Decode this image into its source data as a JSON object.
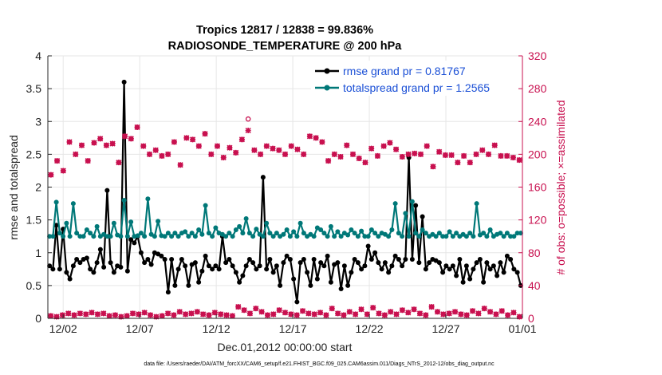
{
  "chart_data": {
    "type": "line",
    "title": "Tropics 12817 / 12838 = 99.836%",
    "subtitle": "RADIOSONDE_TEMPERATURE @ 200 hPa",
    "xlabel": "Dec.01,2012 00:00:00 start",
    "ylabel": "rmse and totalspread",
    "ylabel_right": "# of obs: o=possible; ×=assimilated",
    "xlim": [
      0,
      31
    ],
    "ylim": [
      0,
      4
    ],
    "ylim_right": [
      0,
      320
    ],
    "x_tick_values": [
      1,
      6,
      11,
      16,
      21,
      26,
      31
    ],
    "x_tick_labels": [
      "12/02",
      "12/07",
      "12/12",
      "12/17",
      "12/22",
      "12/27",
      "01/01"
    ],
    "y_ticks": [
      0,
      0.5,
      1,
      1.5,
      2,
      2.5,
      3,
      3.5,
      4
    ],
    "y_tick_labels": [
      "0",
      "0.5",
      "1",
      "1.5",
      "2",
      "2.5",
      "3",
      "3.5",
      "4"
    ],
    "y_ticks_right": [
      0,
      40,
      80,
      120,
      160,
      200,
      240,
      280,
      320
    ],
    "y_tick_labels_right": [
      "0",
      "40",
      "80",
      "120",
      "160",
      "200",
      "240",
      "280",
      "320"
    ],
    "legend": [
      {
        "label": "rmse grand pr = 0.81767",
        "color": "#000000"
      },
      {
        "label": "totalspread grand pr = 1.2565",
        "color": "#007878"
      }
    ],
    "series": [
      {
        "name": "rmse",
        "axis": "left",
        "color": "#000000",
        "values": [
          0.8,
          0.75,
          1.42,
          0.75,
          1.36,
          0.7,
          0.6,
          0.8,
          0.9,
          0.85,
          0.9,
          0.92,
          0.75,
          0.7,
          0.85,
          1.05,
          0.78,
          1.95,
          0.85,
          0.7,
          0.8,
          0.78,
          3.6,
          0.72,
          1.2,
          1.15,
          1.25,
          1.0,
          0.85,
          0.9,
          0.82,
          1.0,
          0.98,
          0.95,
          0.9,
          0.4,
          0.9,
          0.5,
          0.75,
          0.9,
          0.8,
          0.5,
          0.82,
          0.85,
          0.55,
          0.72,
          0.95,
          0.8,
          0.75,
          0.8,
          0.75,
          1.25,
          0.85,
          0.9,
          0.8,
          0.7,
          0.55,
          0.65,
          0.8,
          0.9,
          0.85,
          0.75,
          0.8,
          2.15,
          0.75,
          0.9,
          0.7,
          0.8,
          0.5,
          0.85,
          0.95,
          0.9,
          0.6,
          0.25,
          0.85,
          0.9,
          0.7,
          0.5,
          0.9,
          0.6,
          0.85,
          0.8,
          0.95,
          0.55,
          0.82,
          0.85,
          0.45,
          0.8,
          0.5,
          0.7,
          0.9,
          0.85,
          0.75,
          0.8,
          1.1,
          0.9,
          1.0,
          0.85,
          0.75,
          0.85,
          0.7,
          0.8,
          0.95,
          0.9,
          0.8,
          0.9,
          2.45,
          0.9,
          1.72,
          0.85,
          1.55,
          0.75,
          0.85,
          0.9,
          0.88,
          0.85,
          0.7,
          0.8,
          0.75,
          0.8,
          0.65,
          0.9,
          0.55,
          0.8,
          0.6,
          0.75,
          0.85,
          0.9,
          0.55,
          0.85,
          0.75,
          0.8,
          0.65,
          0.85,
          0.7,
          0.95,
          0.9,
          0.75,
          0.7,
          0.5
        ]
      },
      {
        "name": "totalspread",
        "axis": "left",
        "color": "#007878",
        "values": [
          1.25,
          1.25,
          1.77,
          1.3,
          1.25,
          1.45,
          1.25,
          1.75,
          1.3,
          1.25,
          1.25,
          1.35,
          1.3,
          1.25,
          1.4,
          1.25,
          1.28,
          1.25,
          1.25,
          1.45,
          1.27,
          1.25,
          1.8,
          1.25,
          1.47,
          1.25,
          1.26,
          1.3,
          1.25,
          1.82,
          1.28,
          1.25,
          1.48,
          1.26,
          1.25,
          1.3,
          1.25,
          1.3,
          1.25,
          1.3,
          1.32,
          1.25,
          1.3,
          1.25,
          1.35,
          1.28,
          1.72,
          1.3,
          1.25,
          1.38,
          1.3,
          1.28,
          1.25,
          1.3,
          1.25,
          1.35,
          1.4,
          1.3,
          1.52,
          1.3,
          1.25,
          1.36,
          1.28,
          1.25,
          1.45,
          1.3,
          1.25,
          1.3,
          1.25,
          1.28,
          1.35,
          1.25,
          1.32,
          1.25,
          1.45,
          1.3,
          1.25,
          1.28,
          1.25,
          1.38,
          1.35,
          1.3,
          1.25,
          1.4,
          1.25,
          1.32,
          1.25,
          1.3,
          1.27,
          1.35,
          1.3,
          1.25,
          1.33,
          1.25,
          1.25,
          1.35,
          1.3,
          1.25,
          1.3,
          1.28,
          1.25,
          1.35,
          1.75,
          1.3,
          1.25,
          1.6,
          1.25,
          1.78,
          1.3,
          1.25,
          1.35,
          1.3,
          1.25,
          1.28,
          1.25,
          1.3,
          1.25,
          1.25,
          1.32,
          1.25,
          1.3,
          1.25,
          1.28,
          1.25,
          1.3,
          1.25,
          1.75,
          1.27,
          1.3,
          1.25,
          1.35,
          1.25,
          1.28,
          1.3,
          1.25,
          1.3,
          1.25,
          1.25,
          1.3,
          1.3
        ]
      },
      {
        "name": "obs possible (day)",
        "axis": "right",
        "color": "#c8104f",
        "marker": "o",
        "values": [
          175,
          192,
          180,
          215,
          200,
          211,
          192,
          214,
          219,
          211,
          213,
          190,
          222,
          219,
          233,
          210,
          200,
          205,
          198,
          200,
          215,
          187,
          220,
          218,
          210,
          225,
          200,
          210,
          196,
          208,
          202,
          218,
          243,
          205,
          200,
          210,
          207,
          205,
          200,
          210,
          206,
          200,
          222,
          220,
          215,
          192,
          200,
          197,
          211,
          200,
          195,
          190,
          207,
          198,
          210,
          214,
          206,
          197,
          200,
          201,
          200,
          210,
          185,
          203,
          199,
          199,
          190,
          198,
          190,
          200,
          205,
          200,
          211,
          198,
          198,
          196,
          193
        ]
      },
      {
        "name": "obs assimilated (day)",
        "axis": "right",
        "color": "#c8104f",
        "marker": "x",
        "values": [
          175,
          192,
          180,
          215,
          200,
          211,
          192,
          214,
          219,
          211,
          213,
          190,
          222,
          219,
          233,
          210,
          200,
          205,
          198,
          200,
          215,
          187,
          220,
          218,
          210,
          225,
          200,
          210,
          196,
          208,
          202,
          218,
          229,
          205,
          200,
          210,
          207,
          205,
          200,
          210,
          206,
          200,
          222,
          220,
          215,
          192,
          200,
          197,
          211,
          200,
          195,
          190,
          207,
          198,
          210,
          214,
          206,
          197,
          200,
          201,
          200,
          210,
          185,
          203,
          199,
          199,
          190,
          198,
          190,
          200,
          205,
          200,
          211,
          198,
          198,
          196,
          193
        ]
      },
      {
        "name": "obs possible (night)",
        "axis": "right",
        "color": "#c8104f",
        "marker": "o",
        "values": [
          3,
          2,
          4,
          6,
          4,
          6,
          5,
          7,
          5,
          6,
          3,
          4,
          2,
          3,
          6,
          5,
          7,
          4,
          2,
          3,
          6,
          4,
          8,
          5,
          6,
          8,
          5,
          4,
          7,
          5,
          4,
          3,
          14,
          10,
          6,
          12,
          8,
          4,
          5,
          10,
          7,
          5,
          4,
          9,
          6,
          5,
          7,
          4,
          12,
          6,
          4,
          8,
          5,
          11,
          5,
          13,
          6,
          4,
          8,
          5,
          10,
          7,
          11,
          6,
          4,
          14,
          8,
          5,
          6,
          8,
          5,
          4,
          9,
          6,
          12,
          8,
          5,
          9,
          4,
          7,
          2
        ]
      },
      {
        "name": "obs assimilated (night)",
        "axis": "right",
        "color": "#c8104f",
        "marker": "x",
        "values": [
          3,
          2,
          4,
          6,
          4,
          6,
          5,
          7,
          5,
          6,
          3,
          4,
          2,
          3,
          6,
          5,
          7,
          4,
          2,
          3,
          6,
          4,
          8,
          5,
          6,
          8,
          5,
          4,
          7,
          5,
          4,
          3,
          14,
          10,
          6,
          12,
          8,
          4,
          5,
          10,
          7,
          5,
          4,
          9,
          6,
          5,
          7,
          4,
          12,
          6,
          4,
          8,
          5,
          11,
          5,
          13,
          6,
          4,
          8,
          5,
          10,
          7,
          11,
          6,
          4,
          14,
          8,
          5,
          6,
          8,
          5,
          4,
          9,
          6,
          12,
          8,
          5,
          9,
          4,
          7,
          2
        ]
      }
    ],
    "footnote": "data file: /Users/raeder/DAI/ATM_forcXX/CAM6_setup/f.e21.FHIST_BGC.f09_025.CAM6assim.011/Diags_NTrS_2012-12/obs_diag_output.nc"
  }
}
